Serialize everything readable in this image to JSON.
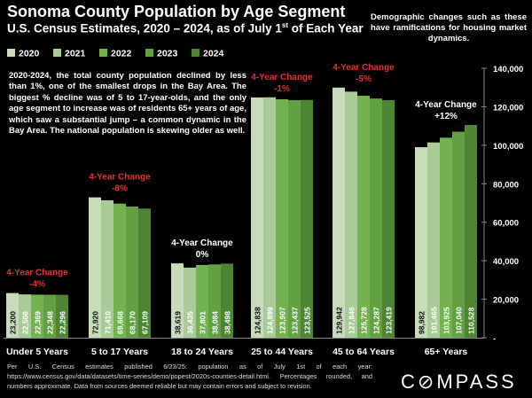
{
  "chart_data": {
    "type": "bar",
    "title": "Sonoma County Population by Age Segment",
    "subtitle_pre": "U.S. Census Estimates, 2020 – 2024, as of July 1",
    "subtitle_sup": "st",
    "subtitle_post": " of Each Year",
    "categories": [
      "Under 5 Years",
      "5 to 17 Years",
      "18 to 24 Years",
      "25 to 44 Years",
      "45 to 64 Years",
      "65+ Years"
    ],
    "series": [
      {
        "name": "2020",
        "color": "#c8dcbc",
        "values": [
          23200,
          72920,
          38619,
          124838,
          129942,
          98982
        ]
      },
      {
        "name": "2021",
        "color": "#a9cb97",
        "values": [
          22506,
          71410,
          36435,
          124899,
          127846,
          101465
        ]
      },
      {
        "name": "2022",
        "color": "#72b24f",
        "values": [
          22369,
          69668,
          37801,
          123907,
          125728,
          103925
        ]
      },
      {
        "name": "2023",
        "color": "#61a043",
        "values": [
          22348,
          68170,
          38084,
          123437,
          124287,
          107040
        ]
      },
      {
        "name": "2024",
        "color": "#4e8535",
        "values": [
          22296,
          67109,
          38498,
          123525,
          123419,
          110528
        ]
      }
    ],
    "data_labels": [
      [
        "23,200",
        "22,506",
        "22,369",
        "22,348",
        "22,296"
      ],
      [
        "72,920",
        "71,410",
        "69,668",
        "68,170",
        "67,109"
      ],
      [
        "38,619",
        "36,435",
        "37,801",
        "38,084",
        "38,498"
      ],
      [
        "124,838",
        "124,899",
        "123,907",
        "123,437",
        "123,525"
      ],
      [
        "129,942",
        "127,846",
        "125,728",
        "124,287",
        "123,419"
      ],
      [
        "98,982",
        "101,465",
        "103,925",
        "107,040",
        "110,528"
      ]
    ],
    "annotations": [
      {
        "label": "4-Year Change",
        "value": "-4%",
        "color": "#e8302a"
      },
      {
        "label": "4-Year Change",
        "value": "-8%",
        "color": "#e8302a"
      },
      {
        "label": "4-Year Change",
        "value": "0%",
        "color": "#ffffff"
      },
      {
        "label": "4-Year Change",
        "value": "-1%",
        "color": "#e8302a"
      },
      {
        "label": "4-Year Change",
        "value": "-5%",
        "color": "#e8302a"
      },
      {
        "label": "4-Year Change",
        "value": "+12%",
        "color": "#ffffff"
      }
    ],
    "ylim": [
      0,
      140000
    ],
    "yticks": [
      "-",
      "20,000",
      "40,000",
      "60,000",
      "80,000",
      "100,000",
      "120,000",
      "140,000"
    ],
    "y_axis_position": "right",
    "legend_placement": "top-left",
    "grid": false
  },
  "note": "Demographic changes such as these have ramifications for housing market dynamics.",
  "description": "2020-2024, the total county population declined by less than 1%, one of the smallest drops in the Bay Area. The biggest % decline was of 5 to 17-year-olds, and the only age segment to increase was of residents 65+ years of age, which saw a substantial jump – a common dynamic in the Bay Area. The national population is skewing older as well.",
  "footer": "Per U.S. Census estimates published 6/23/25: population as of July 1st of each year: https://www.census.gov/data/datasets/time-series/demo/popest/2020s-counties-detail.html. Percentages rounded, and numbers approximate. Data from sources deemed reliable but may contain errors and subject to revision.",
  "logo": "COMPASS"
}
